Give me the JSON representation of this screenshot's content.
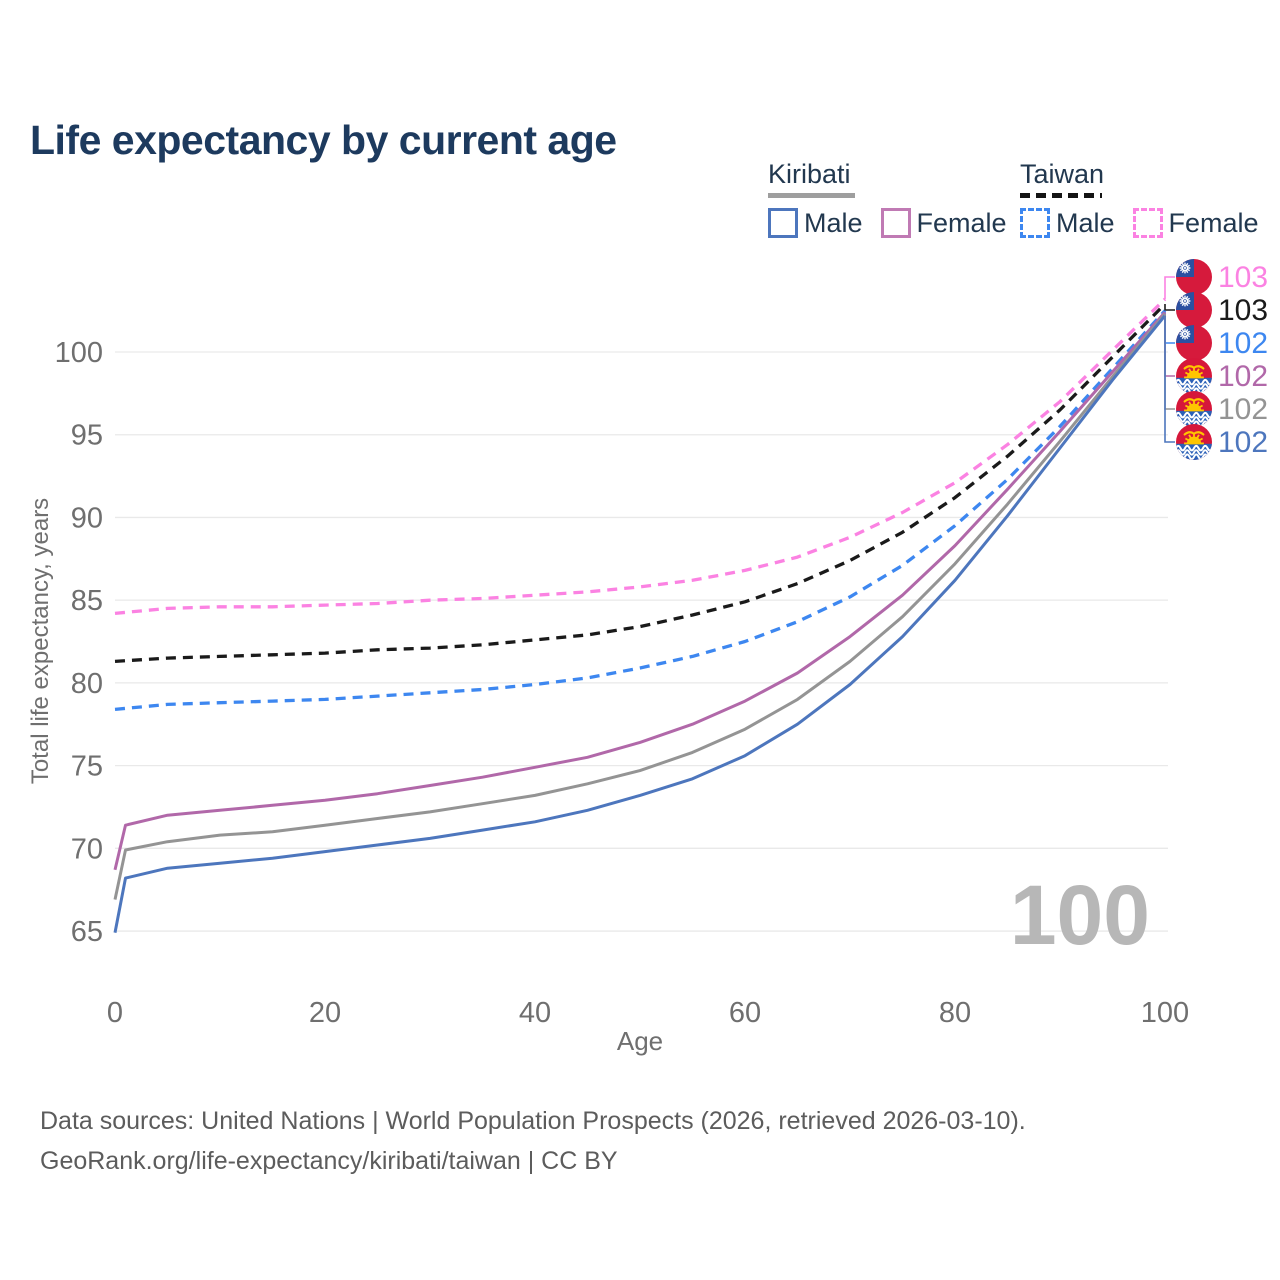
{
  "title": "Life expectancy by current age",
  "legend": {
    "groups": [
      {
        "name": "Kiribati",
        "line_style": "solid",
        "line_color": "#9e9e9e",
        "items": [
          {
            "label": "Male",
            "color": "#4d76bd",
            "dashed": false
          },
          {
            "label": "Female",
            "color": "#c07ab4",
            "dashed": false
          }
        ]
      },
      {
        "name": "Taiwan",
        "line_style": "dashed",
        "line_color": "#141414",
        "items": [
          {
            "label": "Male",
            "color": "#3d87f0",
            "dashed": true
          },
          {
            "label": "Female",
            "color": "#fb82e2",
            "dashed": true
          }
        ]
      }
    ]
  },
  "watermark": "100",
  "footer": {
    "line1": "Data sources: United Nations | World Population Prospects (2026, retrieved 2026-03-10).",
    "line2": "GeoRank.org/life-expectancy/kiribati/taiwan | CC BY"
  },
  "chart_data": {
    "type": "line",
    "title": "Life expectancy by current age",
    "xlabel": "Age",
    "ylabel": "Total life expectancy, years",
    "xlim": [
      0,
      100
    ],
    "ylim": [
      63.5,
      104.5
    ],
    "x_ticks": [
      0,
      20,
      40,
      60,
      80,
      100
    ],
    "y_ticks": [
      65,
      70,
      75,
      80,
      85,
      90,
      95,
      100
    ],
    "grid": "horizontal-only",
    "legend_position": "top-right",
    "colors": {
      "gridline": "#e9e9e9",
      "tick_text": "#6f6f6f",
      "watermark": "#b7b7b7"
    },
    "series": [
      {
        "name": "Taiwan Female",
        "country": "Taiwan",
        "sex": "Female",
        "flag": "taiwan",
        "color": "#fb82e2",
        "dashed": true,
        "end_label": "103",
        "points": [
          [
            0,
            84.2
          ],
          [
            5,
            84.5
          ],
          [
            10,
            84.6
          ],
          [
            15,
            84.6
          ],
          [
            20,
            84.7
          ],
          [
            25,
            84.8
          ],
          [
            30,
            85.0
          ],
          [
            35,
            85.1
          ],
          [
            40,
            85.3
          ],
          [
            45,
            85.5
          ],
          [
            50,
            85.8
          ],
          [
            55,
            86.2
          ],
          [
            60,
            86.8
          ],
          [
            65,
            87.6
          ],
          [
            70,
            88.8
          ],
          [
            75,
            90.3
          ],
          [
            80,
            92.1
          ],
          [
            85,
            94.4
          ],
          [
            90,
            97.0
          ],
          [
            95,
            100.1
          ],
          [
            100,
            103.2
          ]
        ]
      },
      {
        "name": "Taiwan Total",
        "country": "Taiwan",
        "sex": "Total",
        "flag": "taiwan",
        "color": "#1a1a1a",
        "dashed": true,
        "end_label": "103",
        "points": [
          [
            0,
            81.3
          ],
          [
            5,
            81.5
          ],
          [
            10,
            81.6
          ],
          [
            15,
            81.7
          ],
          [
            20,
            81.8
          ],
          [
            25,
            82.0
          ],
          [
            30,
            82.1
          ],
          [
            35,
            82.3
          ],
          [
            40,
            82.6
          ],
          [
            45,
            82.9
          ],
          [
            50,
            83.4
          ],
          [
            55,
            84.1
          ],
          [
            60,
            84.9
          ],
          [
            65,
            86.0
          ],
          [
            70,
            87.4
          ],
          [
            75,
            89.1
          ],
          [
            80,
            91.2
          ],
          [
            85,
            93.7
          ],
          [
            90,
            96.5
          ],
          [
            95,
            99.7
          ],
          [
            100,
            102.9
          ]
        ]
      },
      {
        "name": "Taiwan Male",
        "country": "Taiwan",
        "sex": "Male",
        "flag": "taiwan",
        "color": "#3d87f0",
        "dashed": true,
        "end_label": "102",
        "points": [
          [
            0,
            78.4
          ],
          [
            5,
            78.7
          ],
          [
            10,
            78.8
          ],
          [
            15,
            78.9
          ],
          [
            20,
            79.0
          ],
          [
            25,
            79.2
          ],
          [
            30,
            79.4
          ],
          [
            35,
            79.6
          ],
          [
            40,
            79.9
          ],
          [
            45,
            80.3
          ],
          [
            50,
            80.9
          ],
          [
            55,
            81.6
          ],
          [
            60,
            82.5
          ],
          [
            65,
            83.7
          ],
          [
            70,
            85.2
          ],
          [
            75,
            87.1
          ],
          [
            80,
            89.5
          ],
          [
            85,
            92.3
          ],
          [
            90,
            95.5
          ],
          [
            95,
            99.0
          ],
          [
            100,
            102.5
          ]
        ]
      },
      {
        "name": "Kiribati Female",
        "country": "Kiribati",
        "sex": "Female",
        "flag": "kiribati",
        "color": "#b168a9",
        "dashed": false,
        "end_label": "102",
        "points": [
          [
            0,
            68.7
          ],
          [
            1,
            71.4
          ],
          [
            5,
            72.0
          ],
          [
            10,
            72.3
          ],
          [
            15,
            72.6
          ],
          [
            20,
            72.9
          ],
          [
            25,
            73.3
          ],
          [
            30,
            73.8
          ],
          [
            35,
            74.3
          ],
          [
            40,
            74.9
          ],
          [
            45,
            75.5
          ],
          [
            50,
            76.4
          ],
          [
            55,
            77.5
          ],
          [
            60,
            78.9
          ],
          [
            65,
            80.6
          ],
          [
            70,
            82.8
          ],
          [
            75,
            85.3
          ],
          [
            80,
            88.3
          ],
          [
            85,
            91.7
          ],
          [
            90,
            95.2
          ],
          [
            95,
            98.8
          ],
          [
            100,
            102.4
          ]
        ]
      },
      {
        "name": "Kiribati Total",
        "country": "Kiribati",
        "sex": "Total",
        "flag": "kiribati",
        "color": "#949494",
        "dashed": false,
        "end_label": "102",
        "points": [
          [
            0,
            66.9
          ],
          [
            1,
            69.9
          ],
          [
            5,
            70.4
          ],
          [
            10,
            70.8
          ],
          [
            15,
            71.0
          ],
          [
            20,
            71.4
          ],
          [
            25,
            71.8
          ],
          [
            30,
            72.2
          ],
          [
            35,
            72.7
          ],
          [
            40,
            73.2
          ],
          [
            45,
            73.9
          ],
          [
            50,
            74.7
          ],
          [
            55,
            75.8
          ],
          [
            60,
            77.2
          ],
          [
            65,
            79.0
          ],
          [
            70,
            81.3
          ],
          [
            75,
            84.0
          ],
          [
            80,
            87.2
          ],
          [
            85,
            90.8
          ],
          [
            90,
            94.6
          ],
          [
            95,
            98.5
          ],
          [
            100,
            102.3
          ]
        ]
      },
      {
        "name": "Kiribati Male",
        "country": "Kiribati",
        "sex": "Male",
        "flag": "kiribati",
        "color": "#4d76bd",
        "dashed": false,
        "end_label": "102",
        "points": [
          [
            0,
            64.9
          ],
          [
            1,
            68.2
          ],
          [
            5,
            68.8
          ],
          [
            10,
            69.1
          ],
          [
            15,
            69.4
          ],
          [
            20,
            69.8
          ],
          [
            25,
            70.2
          ],
          [
            30,
            70.6
          ],
          [
            35,
            71.1
          ],
          [
            40,
            71.6
          ],
          [
            45,
            72.3
          ],
          [
            50,
            73.2
          ],
          [
            55,
            74.2
          ],
          [
            60,
            75.6
          ],
          [
            65,
            77.5
          ],
          [
            70,
            79.9
          ],
          [
            75,
            82.8
          ],
          [
            80,
            86.2
          ],
          [
            85,
            90.1
          ],
          [
            90,
            94.2
          ],
          [
            95,
            98.3
          ],
          [
            100,
            102.2
          ]
        ]
      }
    ]
  }
}
